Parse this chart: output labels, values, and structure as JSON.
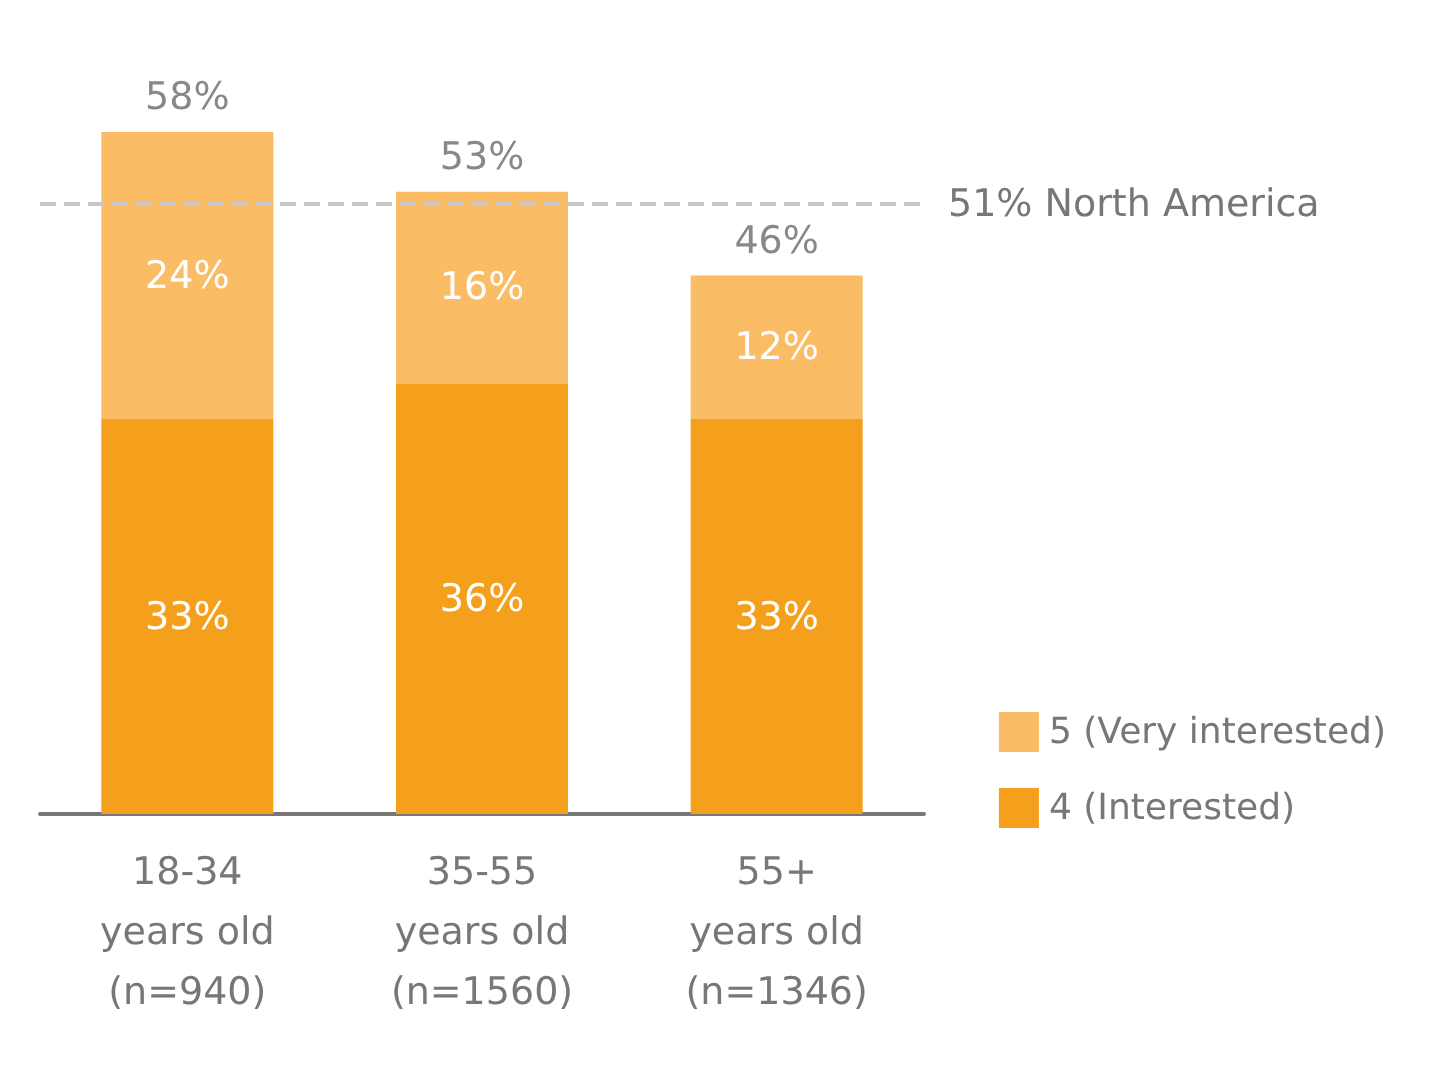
{
  "chart_data": {
    "type": "bar",
    "stacked": true,
    "categories": [
      "18-34\nyears old\n(n=940)",
      "35-55\nyears old\n(n=1560)",
      "55+\nyears old\n(n=1346)"
    ],
    "series": [
      {
        "name": "4 (Interested)",
        "color": "#f5a01d",
        "values": [
          33,
          36,
          33
        ],
        "value_labels": [
          "33%",
          "36%",
          "33%"
        ]
      },
      {
        "name": "5 (Very interested)",
        "color": "#fbbc66",
        "values": [
          24,
          16,
          12
        ],
        "value_labels": [
          "24%",
          "16%",
          "12%"
        ]
      }
    ],
    "totals": [
      "58%",
      "53%",
      "46%"
    ],
    "ref_lines": [
      {
        "axis": "y",
        "value": 51,
        "label": "51% North America",
        "color": "#c8c8c8",
        "line_style": "dashed"
      }
    ],
    "legend": "bottom right"
  }
}
